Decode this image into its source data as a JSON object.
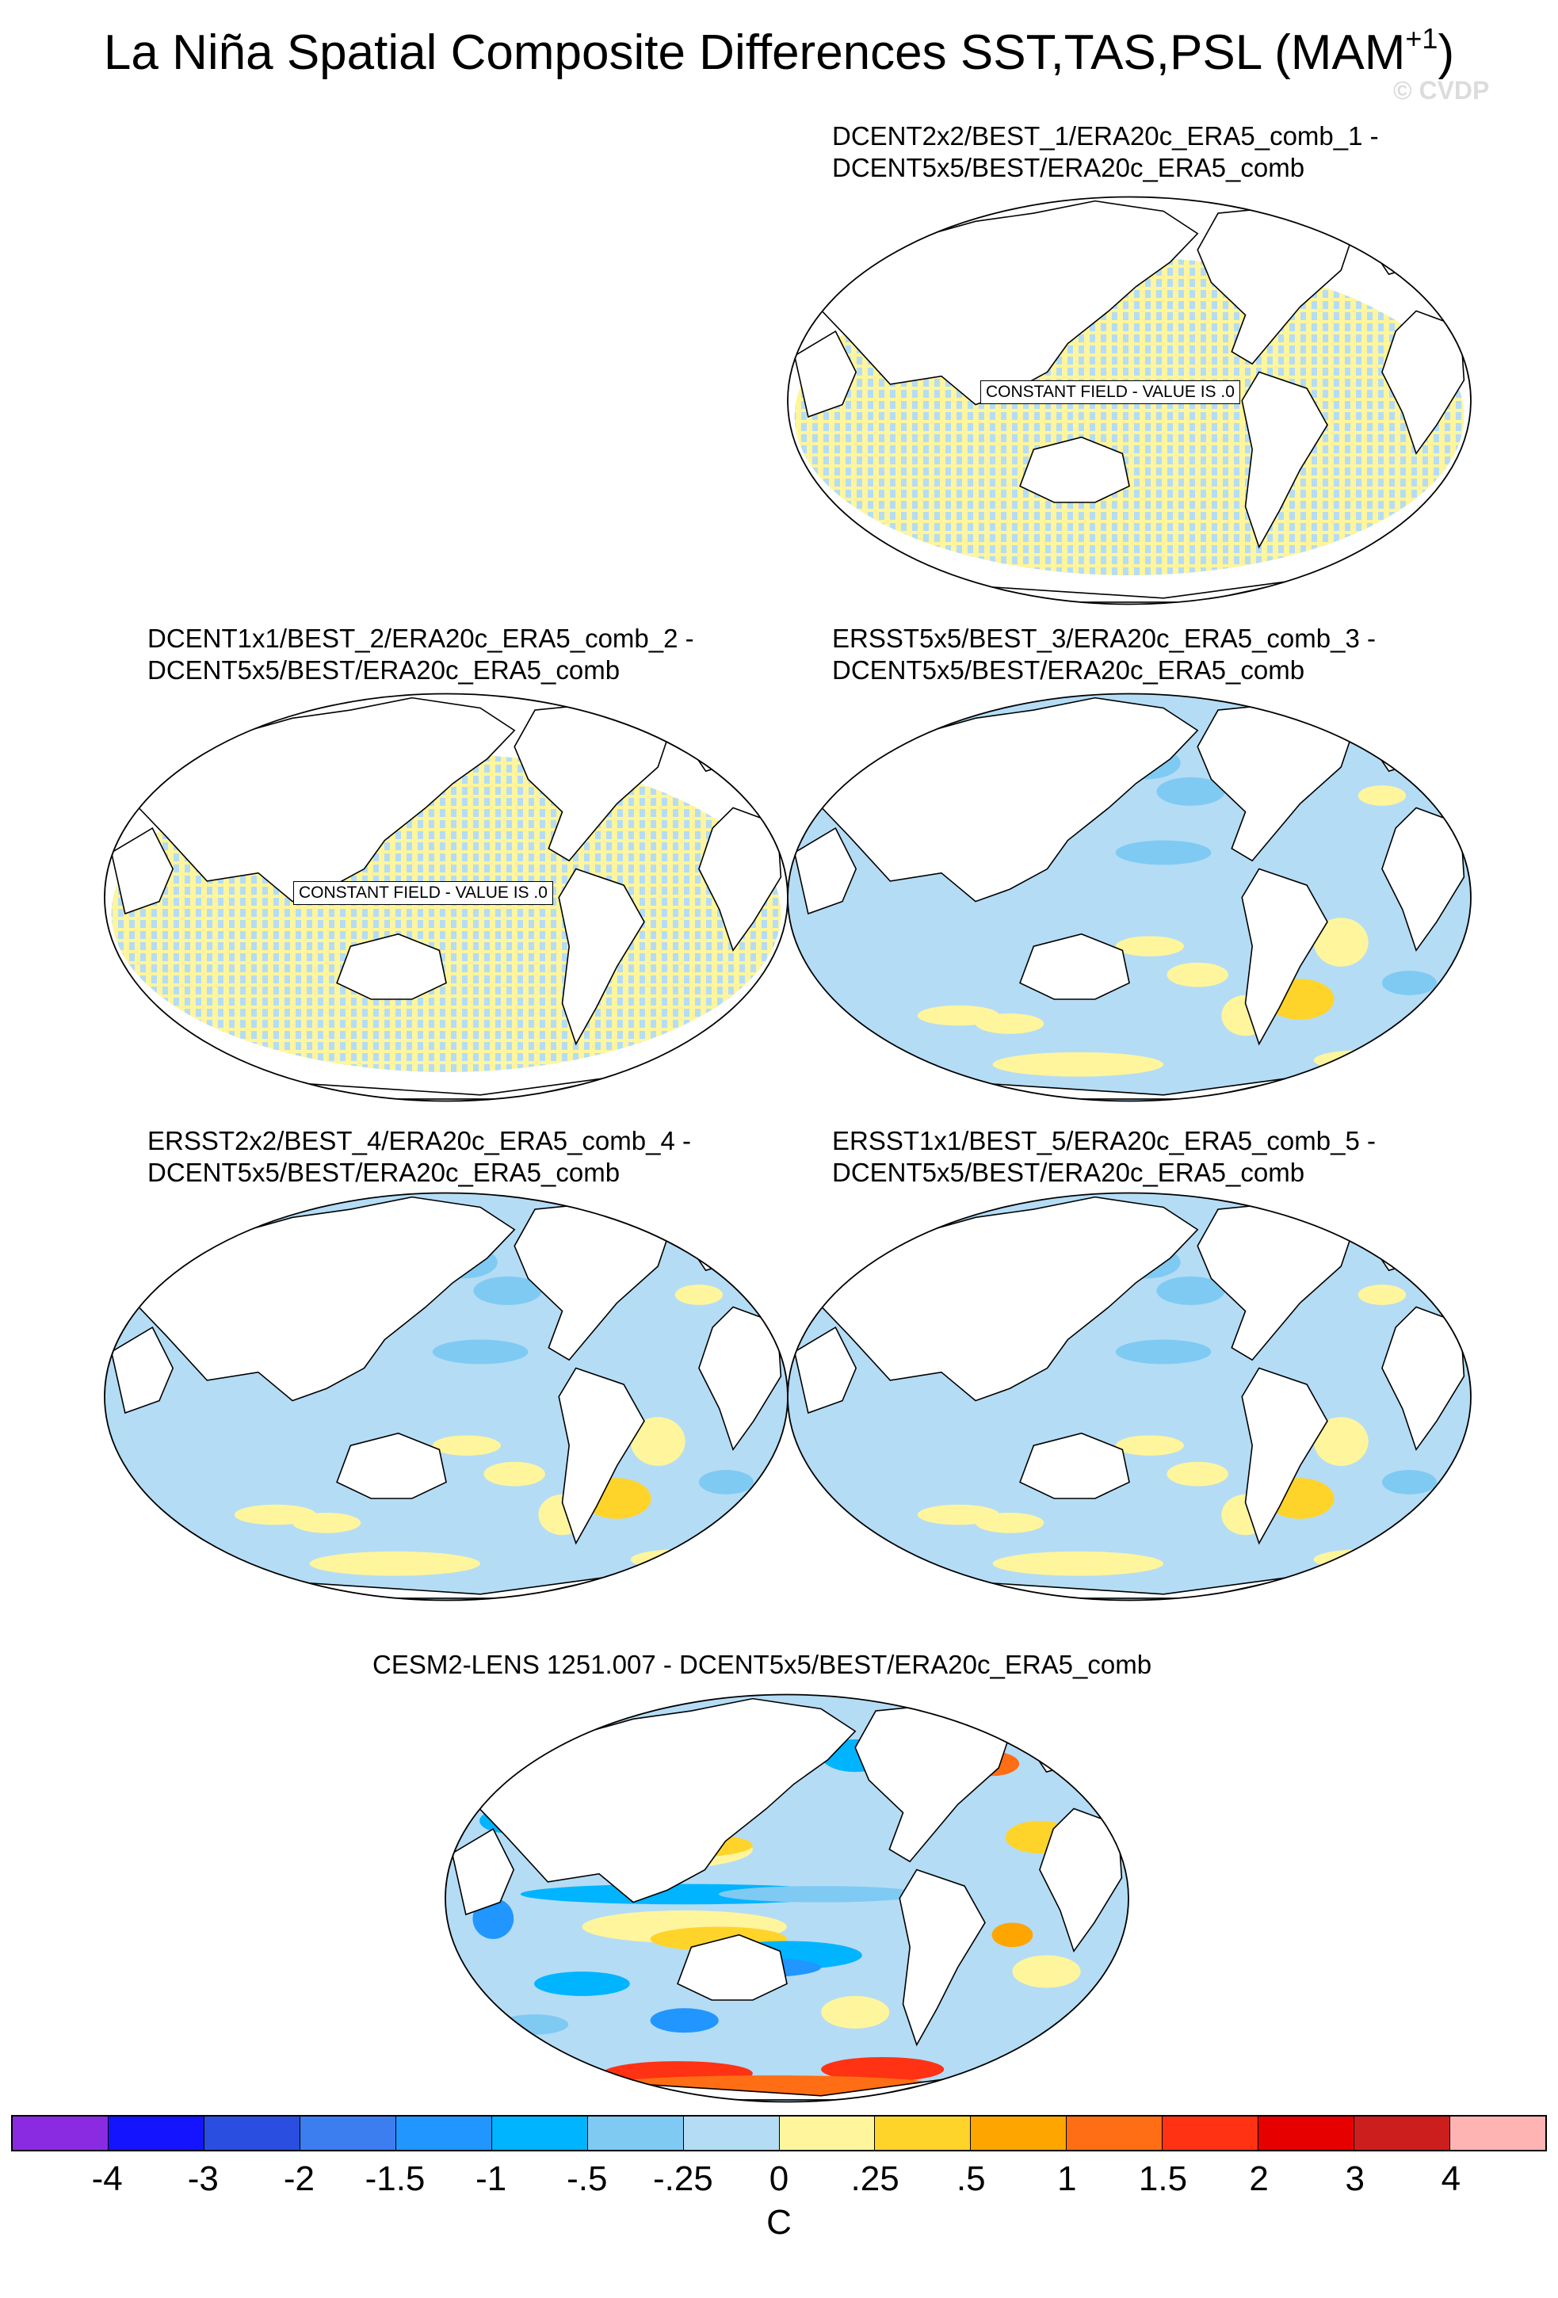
{
  "title": {
    "main": "La Niña Spatial Composite Differences SST,TAS,PSL (MAM",
    "superscript": "+1",
    "close": ")"
  },
  "watermark": "© CVDP",
  "chart_data": [
    {
      "type": "heatmap",
      "title_line1": "DCENT2x2/BEST_1/ERA20c_ERA5_comb_1 -",
      "title_line2": "DCENT5x5/BEST/ERA20c_ERA5_comb",
      "note": "CONSTANT FIELD - VALUE IS .0",
      "field": "constant"
    },
    {
      "type": "heatmap",
      "title_line1": "DCENT1x1/BEST_2/ERA20c_ERA5_comb_2 -",
      "title_line2": "DCENT5x5/BEST/ERA20c_ERA5_comb",
      "note": "CONSTANT FIELD - VALUE IS .0",
      "field": "constant"
    },
    {
      "type": "heatmap",
      "title_line1": "ERSST5x5/BEST_3/ERA20c_ERA5_comb_3 -",
      "title_line2": "DCENT5x5/BEST/ERA20c_ERA5_comb",
      "field": "weak"
    },
    {
      "type": "heatmap",
      "title_line1": "ERSST2x2/BEST_4/ERA20c_ERA5_comb_4 -",
      "title_line2": "DCENT5x5/BEST/ERA20c_ERA5_comb",
      "field": "weak"
    },
    {
      "type": "heatmap",
      "title_line1": "ERSST1x1/BEST_5/ERA20c_ERA5_comb_5 -",
      "title_line2": "DCENT5x5/BEST/ERA20c_ERA5_comb",
      "field": "weak"
    },
    {
      "type": "heatmap",
      "title_line1": "CESM2-LENS 1251.007 - DCENT5x5/BEST/ERA20c_ERA5_comb",
      "title_line2": "",
      "field": "strong"
    }
  ],
  "colorbar": {
    "units": "C",
    "tick_labels": [
      "-4",
      "-3",
      "-2",
      "-1.5",
      "-1",
      "-.5",
      "-.25",
      "0",
      ".25",
      ".5",
      "1",
      "1.5",
      "2",
      "3",
      "4"
    ],
    "colors": [
      "#8a2be2",
      "#1414ff",
      "#2a4ee0",
      "#3c7df0",
      "#2196ff",
      "#00b4ff",
      "#7fcaf2",
      "#b4dcf5",
      "#fff59d",
      "#ffd42a",
      "#ffa500",
      "#ff6e14",
      "#ff3214",
      "#e60000",
      "#cd1e1e",
      "#ffb4b4"
    ]
  }
}
